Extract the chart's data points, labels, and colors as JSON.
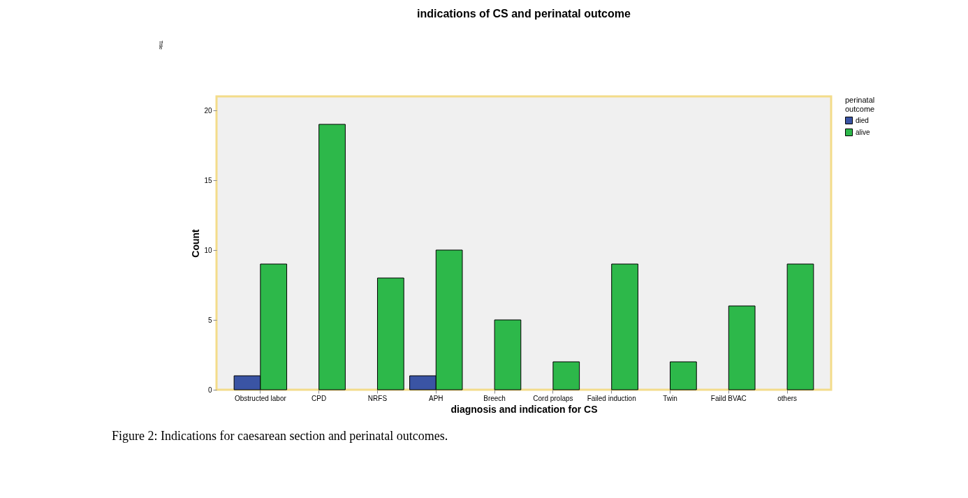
{
  "chart_data": {
    "type": "bar",
    "title": "indications of CS and perinatal outcome",
    "xlabel": "diagnosis and indication for CS",
    "ylabel": "Count",
    "legend_title": "perinatal outcome",
    "categories": [
      "Obstructed labor",
      "CPD",
      "NRFS",
      "APH",
      "Breech",
      "Cord prolaps",
      "Failed induction",
      "Twin",
      "Faild BVAC",
      "others"
    ],
    "series": [
      {
        "name": "died",
        "color": "#3a54a4",
        "values": [
          1,
          null,
          null,
          1,
          null,
          null,
          null,
          null,
          null,
          null
        ]
      },
      {
        "name": "alive",
        "color": "#2db84a",
        "values": [
          9,
          19,
          8,
          10,
          5,
          2,
          9,
          2,
          6,
          9
        ]
      }
    ],
    "ylim": [
      0,
      21
    ],
    "yticks": [
      0,
      5,
      10,
      15,
      20
    ],
    "grid": false,
    "legend": "top right",
    "annotations": [
      "Title",
      "Figure 2: Indications for caesarean section and perinatal outcomes."
    ]
  }
}
